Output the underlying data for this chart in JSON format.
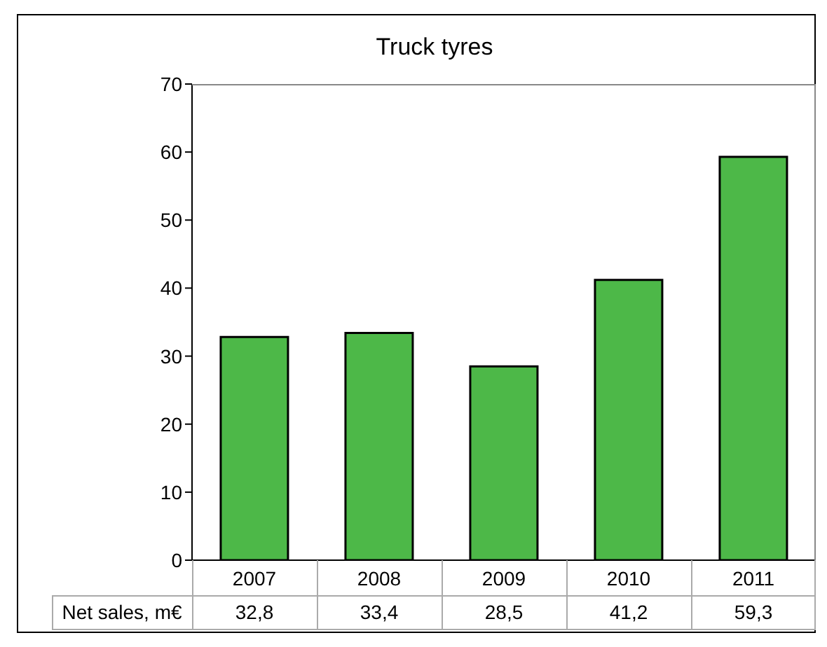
{
  "chart_data": {
    "type": "bar",
    "title": "Truck tyres",
    "categories": [
      "2007",
      "2008",
      "2009",
      "2010",
      "2011"
    ],
    "series": [
      {
        "name": "Net sales, m€",
        "color": "#4db848",
        "values": [
          32.8,
          33.4,
          28.5,
          41.2,
          59.3
        ],
        "value_labels": [
          "32,8",
          "33,4",
          "28,5",
          "41,2",
          "59,3"
        ]
      }
    ],
    "ylim": [
      0,
      70
    ],
    "yticks": [
      0,
      10,
      20,
      30,
      40,
      50,
      60,
      70
    ]
  }
}
